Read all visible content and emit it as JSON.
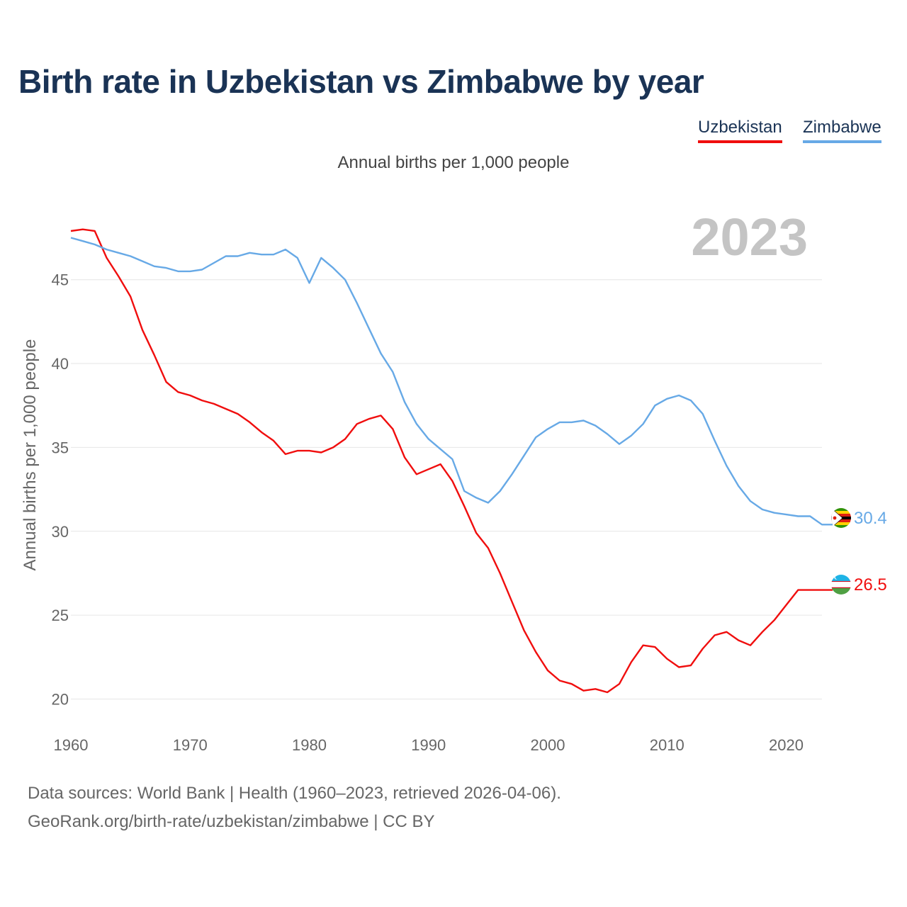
{
  "title": "Birth rate in Uzbekistan vs Zimbabwe by year",
  "subtitle": "Annual births per 1,000 people",
  "legend": [
    {
      "name": "Uzbekistan",
      "color": "#f00e0e"
    },
    {
      "name": "Zimbabwe",
      "color": "#67a9e6"
    }
  ],
  "year_label": "2023",
  "footer": {
    "source": "Data sources: World Bank | Health (1960–2023, retrieved 2026-04-06).",
    "url": "GeoRank.org/birth-rate/uzbekistan/zimbabwe | CC BY"
  },
  "chart_data": {
    "type": "line",
    "title": "Birth rate in Uzbekistan vs Zimbabwe by year",
    "xlabel": "",
    "ylabel": "Annual births per 1,000 people",
    "xlim": [
      1960,
      2023
    ],
    "ylim": [
      18.5,
      49
    ],
    "x_ticks": [
      1960,
      1970,
      1980,
      1990,
      2000,
      2010,
      2020
    ],
    "y_ticks": [
      20,
      25,
      30,
      35,
      40,
      45
    ],
    "grid": true,
    "x": [
      1960,
      1961,
      1962,
      1963,
      1964,
      1965,
      1966,
      1967,
      1968,
      1969,
      1970,
      1971,
      1972,
      1973,
      1974,
      1975,
      1976,
      1977,
      1978,
      1979,
      1980,
      1981,
      1982,
      1983,
      1984,
      1985,
      1986,
      1987,
      1988,
      1989,
      1990,
      1991,
      1992,
      1993,
      1994,
      1995,
      1996,
      1997,
      1998,
      1999,
      2000,
      2001,
      2002,
      2003,
      2004,
      2005,
      2006,
      2007,
      2008,
      2009,
      2010,
      2011,
      2012,
      2013,
      2014,
      2015,
      2016,
      2017,
      2018,
      2019,
      2020,
      2021,
      2022,
      2023
    ],
    "series": [
      {
        "name": "Uzbekistan",
        "color": "#f00e0e",
        "end_label": "26.5",
        "values": [
          47.9,
          48.0,
          47.9,
          46.3,
          45.2,
          44.0,
          42.0,
          40.5,
          38.9,
          38.3,
          38.1,
          37.8,
          37.6,
          37.3,
          37.0,
          36.5,
          35.9,
          35.4,
          34.6,
          34.8,
          34.8,
          34.7,
          35.0,
          35.5,
          36.4,
          36.7,
          36.9,
          36.1,
          34.4,
          33.4,
          33.7,
          34.0,
          33.0,
          31.5,
          29.9,
          29.0,
          27.5,
          25.8,
          24.1,
          22.8,
          21.7,
          21.1,
          20.9,
          20.5,
          20.6,
          20.4,
          20.9,
          22.2,
          23.2,
          23.1,
          22.4,
          21.9,
          22.0,
          23.0,
          23.8,
          24.0,
          23.5,
          23.2,
          24.0,
          24.7,
          25.6,
          26.5,
          26.5,
          26.5
        ]
      },
      {
        "name": "Zimbabwe",
        "color": "#67a9e6",
        "end_label": "30.4",
        "values": [
          47.5,
          47.3,
          47.1,
          46.8,
          46.6,
          46.4,
          46.1,
          45.8,
          45.7,
          45.5,
          45.5,
          45.6,
          46.0,
          46.4,
          46.4,
          46.6,
          46.5,
          46.5,
          46.8,
          46.3,
          44.8,
          46.3,
          45.7,
          45.0,
          43.6,
          42.1,
          40.6,
          39.5,
          37.7,
          36.4,
          35.5,
          34.9,
          34.3,
          32.4,
          32.0,
          31.7,
          32.4,
          33.4,
          34.5,
          35.6,
          36.1,
          36.5,
          36.5,
          36.6,
          36.3,
          35.8,
          35.2,
          35.7,
          36.4,
          37.5,
          37.9,
          38.1,
          37.8,
          37.0,
          35.4,
          33.9,
          32.7,
          31.8,
          31.3,
          31.1,
          31.0,
          30.9,
          30.9,
          30.4
        ]
      }
    ]
  }
}
